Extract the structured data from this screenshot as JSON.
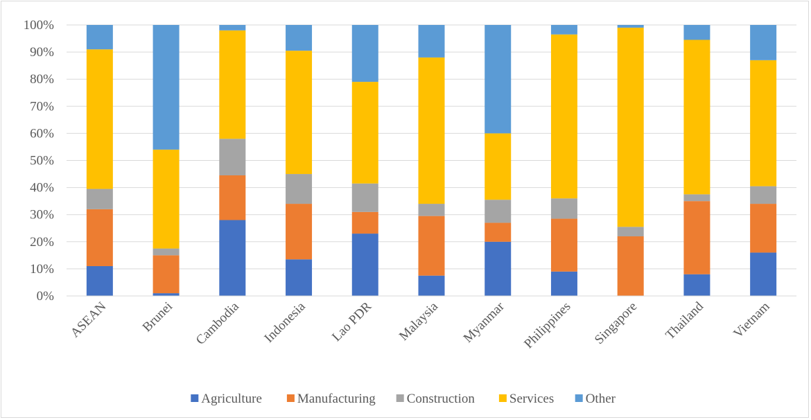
{
  "chart_data": {
    "type": "bar",
    "stacked": true,
    "percent": true,
    "categories": [
      "ASEAN",
      "Brunei",
      "Cambodia",
      "Indonesia",
      "Lao PDR",
      "Malaysia",
      "Myanmar",
      "Philippines",
      "Singapore",
      "Thailand",
      "Vietnam"
    ],
    "series": [
      {
        "name": "Agriculture",
        "color": "#4472c4",
        "values": [
          11,
          1,
          28,
          13.5,
          23,
          7.5,
          20,
          9,
          0,
          8,
          16
        ]
      },
      {
        "name": "Manufacturing",
        "color": "#ed7d31",
        "values": [
          21,
          14,
          16.5,
          20.5,
          8,
          22,
          7,
          19.5,
          22,
          27,
          18
        ]
      },
      {
        "name": "Construction",
        "color": "#a5a5a5",
        "values": [
          7.5,
          2.5,
          13.5,
          11,
          10.5,
          4.5,
          8.5,
          7.5,
          3.5,
          2.5,
          6.5
        ]
      },
      {
        "name": "Services",
        "color": "#ffc000",
        "values": [
          51.5,
          36.5,
          40,
          45.5,
          37.5,
          54,
          24.5,
          60.5,
          73.5,
          57,
          46.5
        ]
      },
      {
        "name": "Other",
        "color": "#5b9bd5",
        "values": [
          9,
          46,
          2,
          9.5,
          21,
          12,
          40,
          3.5,
          1,
          5.5,
          13
        ]
      }
    ],
    "ylim": [
      0,
      100
    ],
    "yticks": [
      "0%",
      "10%",
      "20%",
      "30%",
      "40%",
      "50%",
      "60%",
      "70%",
      "80%",
      "90%",
      "100%"
    ],
    "grid": true,
    "legend_position": "bottom"
  }
}
